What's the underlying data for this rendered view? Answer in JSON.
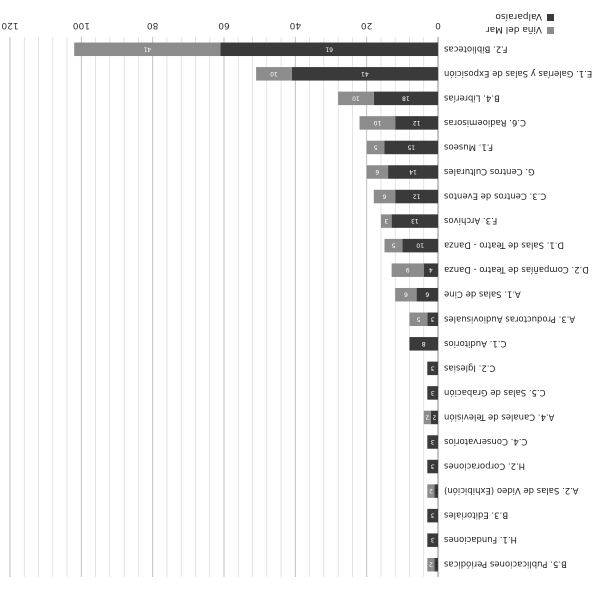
{
  "chart_data": {
    "type": "bar",
    "orientation": "horizontal",
    "stacked": true,
    "categories": [
      "B.5. Publicaciones Periódicas",
      "H.1. Fundaciones",
      "B.3. Editoriales",
      "A.2. Salas de Video (Exhibición)",
      "H.2. Corporaciones",
      "C.4. Conservatorios",
      "A.4. Canales de Televisión",
      "C.5. Salas de Grabación",
      "C.2. Iglesias",
      "C.1. Auditorios",
      "A.3. Productoras Audiovisuales",
      "A.1. Salas de Cine",
      "D.2. Compañías de Teatro - Danza",
      "D.1. Salas de Teatro - Danza",
      "F.3. Archivos",
      "C.3. Centros de Eventos",
      "G. Centros Culturales",
      "F.1. Museos",
      "C.6. Radioemisoras",
      "B.4. Librerías",
      "E.1. Galerías y Salas de Exposición",
      "F.2. Bibliotecas"
    ],
    "series": [
      {
        "name": "Valparaíso",
        "color": "#3a3a3a",
        "values": [
          1,
          3,
          3,
          1,
          3,
          3,
          2,
          3,
          3,
          8,
          3,
          6,
          4,
          10,
          13,
          12,
          14,
          15,
          12,
          18,
          41,
          61
        ]
      },
      {
        "name": "Viña del Mar",
        "color": "#8c8c8c",
        "values": [
          2,
          0,
          0,
          2,
          0,
          0,
          2,
          0,
          0,
          0,
          5,
          6,
          9,
          5,
          3,
          6,
          6,
          5,
          10,
          10,
          10,
          41
        ]
      }
    ],
    "xlim": [
      0,
      120
    ],
    "xticks": [
      0,
      20,
      40,
      60,
      80,
      100,
      120
    ],
    "grid": true,
    "legend": "top-right",
    "image_rotated_180": true
  }
}
